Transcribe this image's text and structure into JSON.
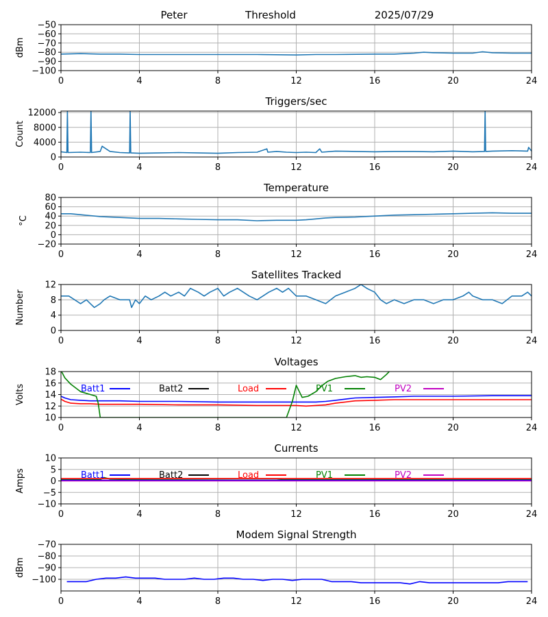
{
  "header": {
    "name": "Peter",
    "label": "Threshold",
    "date": "2025/07/29"
  },
  "colors": {
    "default": "#1f77b4",
    "Batt1": "#0000ff",
    "Batt2": "#000000",
    "Load": "#ff0000",
    "PV1": "#008000",
    "PV2": "#c000c0"
  },
  "chart_data": [
    {
      "type": "line",
      "title": "",
      "ylabel": "dBm",
      "xlim": [
        0,
        24
      ],
      "ylim": [
        -100,
        -50
      ],
      "xticks": [
        0,
        4,
        8,
        12,
        16,
        20,
        24
      ],
      "yticks": [
        -100,
        -90,
        -80,
        -70,
        -60,
        -50
      ],
      "grid": true,
      "series": [
        {
          "name": "",
          "color": "#1f77b4",
          "x": [
            0,
            1,
            2,
            3,
            4,
            6,
            8,
            10,
            12,
            13,
            14,
            16,
            17,
            18,
            18.5,
            19,
            20,
            21,
            21.5,
            22,
            23,
            24
          ],
          "y": [
            -82,
            -81.5,
            -82,
            -82,
            -82.5,
            -82.5,
            -82.5,
            -82.5,
            -83,
            -82.5,
            -82.5,
            -82,
            -82,
            -81,
            -80,
            -80.5,
            -81,
            -81,
            -79.5,
            -80.5,
            -81,
            -81
          ]
        }
      ]
    },
    {
      "type": "line",
      "title": "Triggers/sec",
      "ylabel": "Count",
      "xlim": [
        0,
        24
      ],
      "ylim": [
        0,
        12400
      ],
      "xticks": [
        0,
        4,
        8,
        12,
        16,
        20,
        24
      ],
      "yticks": [
        0,
        4000,
        8000,
        12000
      ],
      "grid": true,
      "series": [
        {
          "name": "",
          "color": "#1f77b4",
          "x": [
            0,
            0.3,
            0.33,
            0.36,
            1,
            1.5,
            1.53,
            1.56,
            2,
            2.1,
            2.5,
            3,
            3.5,
            3.53,
            3.56,
            4,
            5,
            6,
            7,
            8,
            9,
            10,
            10.5,
            10.55,
            11,
            11.5,
            12,
            12.5,
            13,
            13.2,
            13.3,
            14,
            15,
            16,
            17,
            18,
            19,
            20,
            21,
            21.6,
            21.63,
            21.66,
            22,
            23,
            23.8,
            23.85,
            24
          ],
          "y": [
            1400,
            1200,
            12400,
            1200,
            1300,
            1200,
            12400,
            1200,
            1500,
            2900,
            1500,
            1200,
            1100,
            12400,
            1100,
            1000,
            1100,
            1200,
            1100,
            1000,
            1200,
            1300,
            2200,
            1300,
            1500,
            1300,
            1200,
            1300,
            1200,
            2200,
            1300,
            1600,
            1500,
            1400,
            1500,
            1500,
            1400,
            1600,
            1400,
            1500,
            12400,
            1500,
            1600,
            1700,
            1600,
            2600,
            1600
          ]
        }
      ]
    },
    {
      "type": "line",
      "title": "Temperature",
      "ylabel": "°C",
      "xlim": [
        0,
        24
      ],
      "ylim": [
        -20,
        80
      ],
      "xticks": [
        0,
        4,
        8,
        12,
        16,
        20,
        24
      ],
      "yticks": [
        -20,
        0,
        20,
        40,
        60,
        80
      ],
      "grid": true,
      "series": [
        {
          "name": "",
          "color": "#1f77b4",
          "x": [
            0,
            0.5,
            1,
            1.5,
            2,
            2.5,
            3,
            4,
            5,
            6,
            7,
            8,
            9,
            10,
            11,
            12,
            12.5,
            13,
            13.5,
            14,
            15,
            16,
            17,
            18,
            19,
            20,
            21,
            22,
            23,
            24
          ],
          "y": [
            45,
            45,
            43,
            41,
            39,
            38,
            37,
            35,
            35,
            34,
            33,
            32,
            32,
            30,
            31,
            31,
            32,
            34,
            36,
            37,
            38,
            40,
            42,
            43,
            44,
            45,
            46,
            47,
            46,
            46
          ]
        }
      ]
    },
    {
      "type": "line",
      "title": "Satellites Tracked",
      "ylabel": "Number",
      "xlim": [
        0,
        24
      ],
      "ylim": [
        0,
        12
      ],
      "xticks": [
        0,
        4,
        8,
        12,
        16,
        20,
        24
      ],
      "yticks": [
        0,
        4,
        8,
        12
      ],
      "grid": true,
      "series": [
        {
          "name": "",
          "color": "#1f77b4",
          "x": [
            0,
            0.4,
            0.7,
            1,
            1.3,
            1.5,
            1.7,
            2,
            2.2,
            2.5,
            3,
            3.5,
            3.6,
            3.8,
            4,
            4.3,
            4.6,
            5,
            5.3,
            5.6,
            6,
            6.3,
            6.6,
            7,
            7.3,
            7.6,
            8,
            8.3,
            8.6,
            9,
            9.3,
            9.6,
            10,
            10.3,
            10.6,
            11,
            11.3,
            11.6,
            12,
            12.5,
            13,
            13.5,
            14,
            14.5,
            15,
            15.3,
            15.6,
            16,
            16.3,
            16.6,
            17,
            17.5,
            18,
            18.5,
            19,
            19.5,
            20,
            20.5,
            20.8,
            21,
            21.5,
            22,
            22.5,
            23,
            23.5,
            23.8,
            24
          ],
          "y": [
            9,
            9,
            8,
            7,
            8,
            7,
            6,
            7,
            8,
            9,
            8,
            8,
            6,
            8,
            7,
            9,
            8,
            9,
            10,
            9,
            10,
            9,
            11,
            10,
            9,
            10,
            11,
            9,
            10,
            11,
            10,
            9,
            8,
            9,
            10,
            11,
            10,
            11,
            9,
            9,
            8,
            7,
            9,
            10,
            11,
            12,
            11,
            10,
            8,
            7,
            8,
            7,
            8,
            8,
            7,
            8,
            8,
            9,
            10,
            9,
            8,
            8,
            7,
            9,
            9,
            10,
            9
          ]
        }
      ]
    },
    {
      "type": "line",
      "title": "Voltages",
      "ylabel": "Volts",
      "xlim": [
        0,
        24
      ],
      "ylim": [
        10,
        18
      ],
      "xticks": [
        0,
        4,
        8,
        12,
        16,
        20,
        24
      ],
      "yticks": [
        10,
        12,
        14,
        16,
        18
      ],
      "grid": true,
      "legend": [
        "Batt1",
        "Batt2",
        "Load",
        "PV1",
        "PV2"
      ],
      "legend_placement": "inside-top",
      "series": [
        {
          "name": "Batt1",
          "color": "#0000ff",
          "x": [
            0,
            0.2,
            0.5,
            1,
            1.5,
            2,
            3,
            4,
            6,
            8,
            10,
            12,
            12.5,
            13,
            13.5,
            14,
            14.5,
            15,
            16,
            17,
            18,
            20,
            22,
            24
          ],
          "y": [
            13.7,
            13.4,
            13.1,
            13.0,
            12.9,
            12.9,
            12.9,
            12.8,
            12.8,
            12.7,
            12.7,
            12.7,
            12.7,
            12.7,
            12.8,
            13.0,
            13.2,
            13.4,
            13.5,
            13.6,
            13.7,
            13.7,
            13.8,
            13.8
          ]
        },
        {
          "name": "Load",
          "color": "#ff0000",
          "x": [
            0,
            0.2,
            0.5,
            1,
            1.5,
            2,
            3,
            4,
            6,
            8,
            10,
            12,
            12.5,
            13,
            13.5,
            14,
            14.5,
            15,
            16,
            17,
            18,
            20,
            22,
            24
          ],
          "y": [
            13.2,
            12.8,
            12.5,
            12.4,
            12.4,
            12.3,
            12.3,
            12.3,
            12.2,
            12.2,
            12.1,
            12.1,
            12.0,
            12.1,
            12.2,
            12.5,
            12.7,
            12.9,
            13.0,
            13.1,
            13.1,
            13.1,
            13.1,
            13.1
          ]
        },
        {
          "name": "PV1",
          "color": "#008000",
          "x": [
            0,
            0.2,
            0.5,
            1,
            1.5,
            1.8,
            1.9,
            2.0,
            11.5,
            11.8,
            12,
            12.3,
            12.6,
            13,
            13.3,
            13.6,
            14,
            14.5,
            15,
            15.3,
            15.6,
            16,
            16.3,
            16.6,
            16.8
          ],
          "y": [
            18.2,
            16.9,
            15.8,
            14.5,
            14.0,
            13.7,
            12.5,
            10,
            10,
            12.8,
            15.6,
            13.5,
            13.7,
            14.5,
            15.5,
            16.3,
            16.8,
            17.1,
            17.3,
            17.0,
            17.1,
            17.0,
            16.6,
            17.5,
            18.2
          ]
        }
      ]
    },
    {
      "type": "line",
      "title": "Currents",
      "ylabel": "Amps",
      "xlim": [
        0,
        24
      ],
      "ylim": [
        -10,
        10
      ],
      "xticks": [
        0,
        4,
        8,
        12,
        16,
        20,
        24
      ],
      "yticks": [
        -10,
        -5,
        0,
        5,
        10
      ],
      "grid": true,
      "legend": [
        "Batt1",
        "Batt2",
        "Load",
        "PV1",
        "PV2"
      ],
      "legend_placement": "inside-top",
      "series": [
        {
          "name": "PV1",
          "color": "#008000",
          "x": [
            0,
            2,
            2.2,
            2.5,
            3,
            6,
            9,
            11,
            11.3,
            12,
            16,
            20,
            24
          ],
          "y": [
            0.6,
            0.6,
            1.5,
            0.8,
            0.7,
            0.8,
            0.9,
            0.9,
            0.6,
            0.6,
            0.6,
            0.6,
            0.6
          ]
        },
        {
          "name": "Load",
          "color": "#ff0000",
          "x": [
            0,
            4,
            8,
            12,
            16,
            20,
            24
          ],
          "y": [
            1.0,
            1.0,
            1.0,
            1.0,
            1.0,
            1.0,
            1.0
          ]
        },
        {
          "name": "Batt1",
          "color": "#0000ff",
          "x": [
            0,
            4,
            8,
            12,
            16,
            20,
            24
          ],
          "y": [
            0.3,
            0.3,
            0.3,
            0.3,
            0.3,
            0.3,
            0.3
          ]
        },
        {
          "name": "PV2",
          "color": "#c000c0",
          "x": [
            0,
            4,
            8,
            12,
            16,
            20,
            24
          ],
          "y": [
            0.0,
            0.0,
            0.0,
            0.0,
            0.0,
            0.0,
            0.0
          ]
        }
      ]
    },
    {
      "type": "line",
      "title": "Modem Signal Strength",
      "ylabel": "dBm",
      "xlim": [
        0,
        24
      ],
      "ylim": [
        -110,
        -70
      ],
      "xticks": [
        0,
        4,
        8,
        12,
        16,
        20,
        24
      ],
      "yticks": [
        -100,
        -90,
        -80,
        -70
      ],
      "grid": true,
      "series": [
        {
          "name": "",
          "color": "#0000ff",
          "x": [
            0.3,
            0.6,
            1,
            1.3,
            1.8,
            2.3,
            2.8,
            3.3,
            3.8,
            4.3,
            4.8,
            5.3,
            5.8,
            6.3,
            6.8,
            7.3,
            7.8,
            8.3,
            8.8,
            9.3,
            9.8,
            10.3,
            10.8,
            11.3,
            11.8,
            12.3,
            12.8,
            13.3,
            13.8,
            14.3,
            14.8,
            15.3,
            15.8,
            16.3,
            16.8,
            17.3,
            17.8,
            18.3,
            18.8,
            19.3,
            19.8,
            20.3,
            20.8,
            21.3,
            21.8,
            22.3,
            22.8,
            23.3,
            23.8
          ],
          "y": [
            -102,
            -102,
            -102,
            -102,
            -100,
            -99,
            -99,
            -98,
            -99,
            -99,
            -99,
            -100,
            -100,
            -100,
            -99,
            -100,
            -100,
            -99,
            -99,
            -100,
            -100,
            -101,
            -100,
            -100,
            -101,
            -100,
            -100,
            -100,
            -102,
            -102,
            -102,
            -103,
            -103,
            -103,
            -103,
            -103,
            -104,
            -102,
            -103,
            -103,
            -103,
            -103,
            -103,
            -103,
            -103,
            -103,
            -102,
            -102,
            -102
          ]
        }
      ]
    }
  ]
}
